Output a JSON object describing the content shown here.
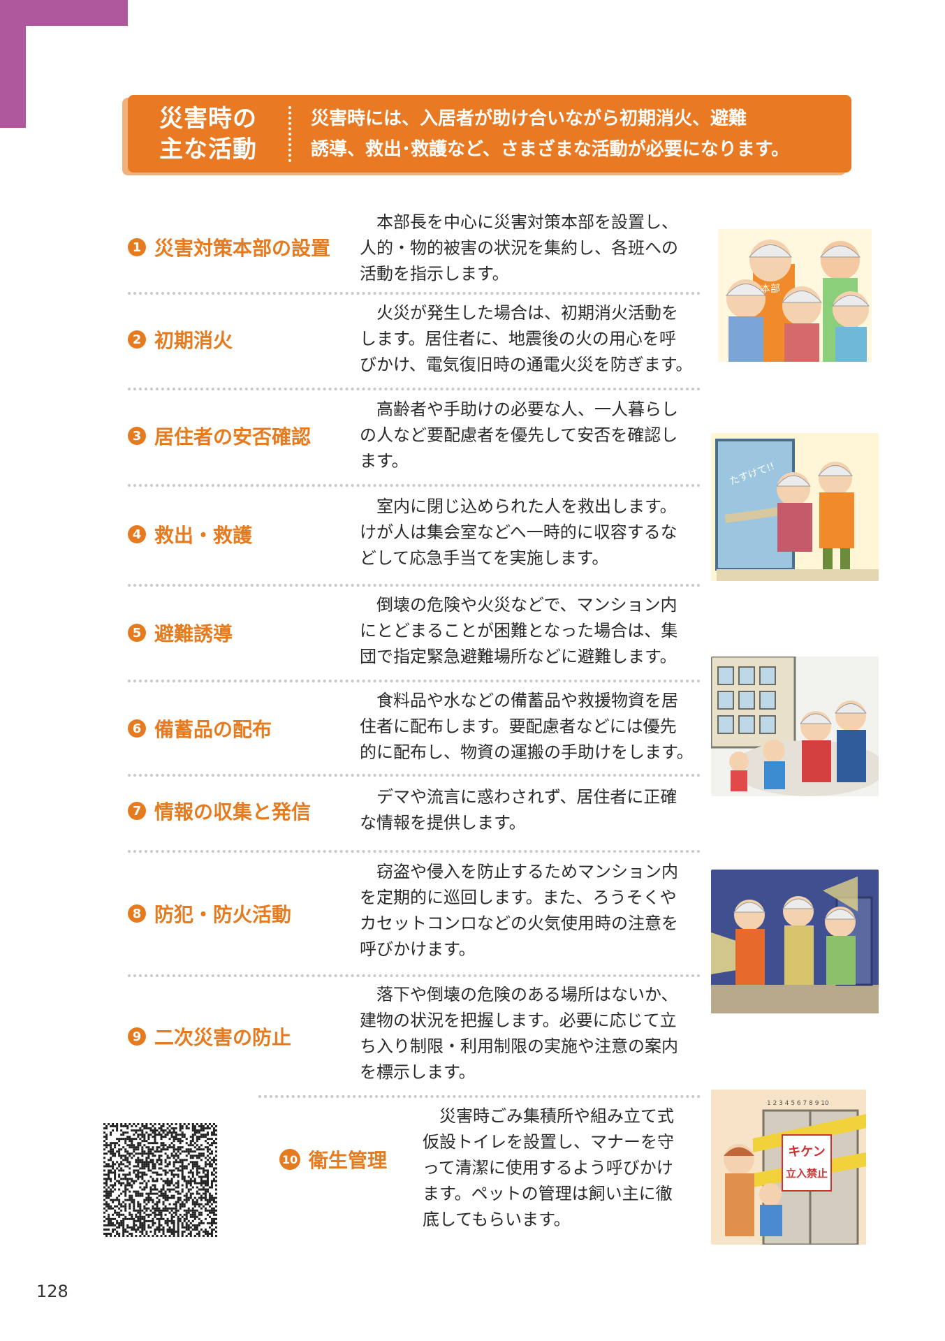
{
  "header": {
    "title_lines": [
      "災害時の",
      "主な活動"
    ],
    "desc_lines": [
      "災害時には、入居者が助け合いながら初期消火、避難",
      "誘導、救出･救護など、さまざまな活動が必要になります。"
    ]
  },
  "items": [
    {
      "num": "1",
      "title": "災害対策本部の設置",
      "lines": [
        "　本部長を中心に災害対策本部を設置し、",
        "人的・物的被害の状況を集約し、各班への",
        "活動を指示します。"
      ]
    },
    {
      "num": "2",
      "title": "初期消火",
      "lines": [
        "　火災が発生した場合は、初期消火活動を",
        "します。居住者に、地震後の火の用心を呼",
        "びかけ、電気復旧時の通電火災を防ぎます。"
      ]
    },
    {
      "num": "3",
      "title": "居住者の安否確認",
      "lines": [
        "　高齢者や手助けの必要な人、一人暮らし",
        "の人など要配慮者を優先して安否を確認し",
        "ます。"
      ]
    },
    {
      "num": "4",
      "title": "救出・救護",
      "lines": [
        "　室内に閉じ込められた人を救出します。",
        "けが人は集会室などへ一時的に収容するな",
        "どして応急手当てを実施します。"
      ]
    },
    {
      "num": "5",
      "title": "避難誘導",
      "lines": [
        "　倒壊の危険や火災などで、マンション内",
        "にとどまることが困難となった場合は、集",
        "団で指定緊急避難場所などに避難します。"
      ]
    },
    {
      "num": "6",
      "title": "備蓄品の配布",
      "lines": [
        "　食料品や水などの備蓄品や救援物資を居",
        "住者に配布します。要配慮者などには優先",
        "的に配布し、物資の運搬の手助けをします。"
      ]
    },
    {
      "num": "7",
      "title": "情報の収集と発信",
      "lines": [
        "　デマや流言に惑わされず、居住者に正確",
        "な情報を提供します。"
      ]
    },
    {
      "num": "8",
      "title": "防犯・防火活動",
      "lines": [
        "　窃盗や侵入を防止するためマンション内",
        "を定期的に巡回します。また、ろうそくや",
        "カセットコンロなどの火気使用時の注意を",
        "呼びかけます。"
      ]
    },
    {
      "num": "9",
      "title": "二次災害の防止",
      "lines": [
        "　落下や倒壊の危険のある場所はないか、",
        "建物の状況を把握します。必要に応じて立",
        "ち入り制限・利用制限の実施や注意の案内",
        "を標示します。"
      ]
    },
    {
      "num": "10",
      "title": "衛生管理",
      "lines": [
        "　災害時ごみ集積所や組み立て式",
        "仮設トイレを設置し、マナーを守",
        "って清潔に使用するよう呼びかけ",
        "ます。ペットの管理は飼い主に徹",
        "底してもらいます。"
      ]
    }
  ],
  "illustrations": {
    "hq_badge": "本部",
    "help_text": "たすけて!!",
    "elevator_numbers": "1 2 3 4 5 6 7 8 9 10",
    "keep_out_sign": [
      "キケン",
      "立入禁止"
    ]
  },
  "page_number": "128"
}
